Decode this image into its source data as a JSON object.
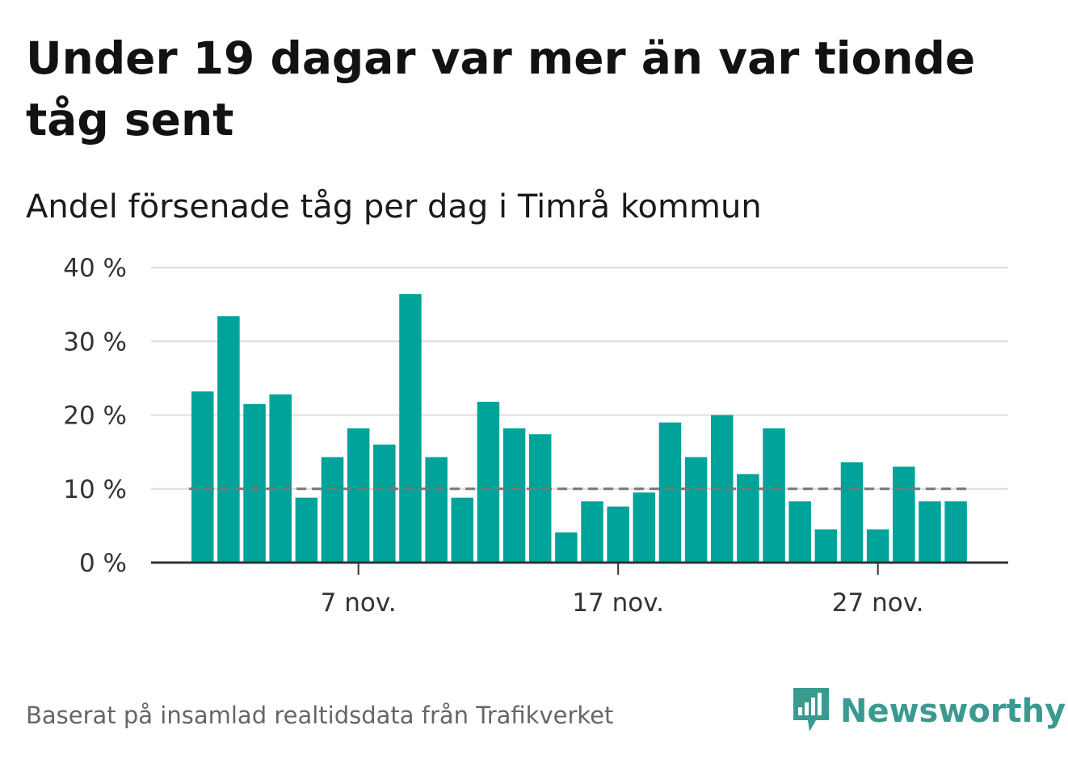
{
  "title": "Under 19 dagar var mer än var tionde tåg sent",
  "subtitle": "Andel försenade tåg per dag i Timrå kommun",
  "footer": "Baserat på insamlad realtidsdata från Trafikverket",
  "brand": {
    "name": "Newsworthy",
    "icon": "newsworthy-logo-icon",
    "color": "#3a9a90"
  },
  "colors": {
    "bar": "#00a39a",
    "grid": "#dcdcdc",
    "axis": "#333333",
    "reference": "#777777"
  },
  "chart_data": {
    "type": "bar",
    "title": "Andel försenade tåg per dag i Timrå kommun",
    "xlabel": "",
    "ylabel": "",
    "ylim": [
      0,
      40
    ],
    "y_ticks": [
      0,
      10,
      20,
      30,
      40
    ],
    "y_tick_labels": [
      "0 %",
      "10 %",
      "20 %",
      "30 %",
      "40 %"
    ],
    "grid": true,
    "reference_line": {
      "value": 10,
      "style": "dashed"
    },
    "categories": [
      "1 nov.",
      "2 nov.",
      "3 nov.",
      "4 nov.",
      "5 nov.",
      "6 nov.",
      "7 nov.",
      "8 nov.",
      "9 nov.",
      "10 nov.",
      "11 nov.",
      "12 nov.",
      "13 nov.",
      "14 nov.",
      "15 nov.",
      "16 nov.",
      "17 nov.",
      "18 nov.",
      "19 nov.",
      "20 nov.",
      "21 nov.",
      "22 nov.",
      "23 nov.",
      "24 nov.",
      "25 nov.",
      "26 nov.",
      "27 nov.",
      "28 nov.",
      "29 nov.",
      "30 nov."
    ],
    "values": [
      23.2,
      33.4,
      21.5,
      22.8,
      8.8,
      14.3,
      18.2,
      16.0,
      36.4,
      14.3,
      8.8,
      21.8,
      18.2,
      17.4,
      4.1,
      8.3,
      7.6,
      9.5,
      19.0,
      14.3,
      20.0,
      12.0,
      18.2,
      8.3,
      4.5,
      13.6,
      4.5,
      13.0,
      8.3,
      8.3
    ],
    "x_tick_labels": [
      {
        "index": 6,
        "label": "7 nov."
      },
      {
        "index": 16,
        "label": "17 nov."
      },
      {
        "index": 26,
        "label": "27 nov."
      }
    ]
  }
}
